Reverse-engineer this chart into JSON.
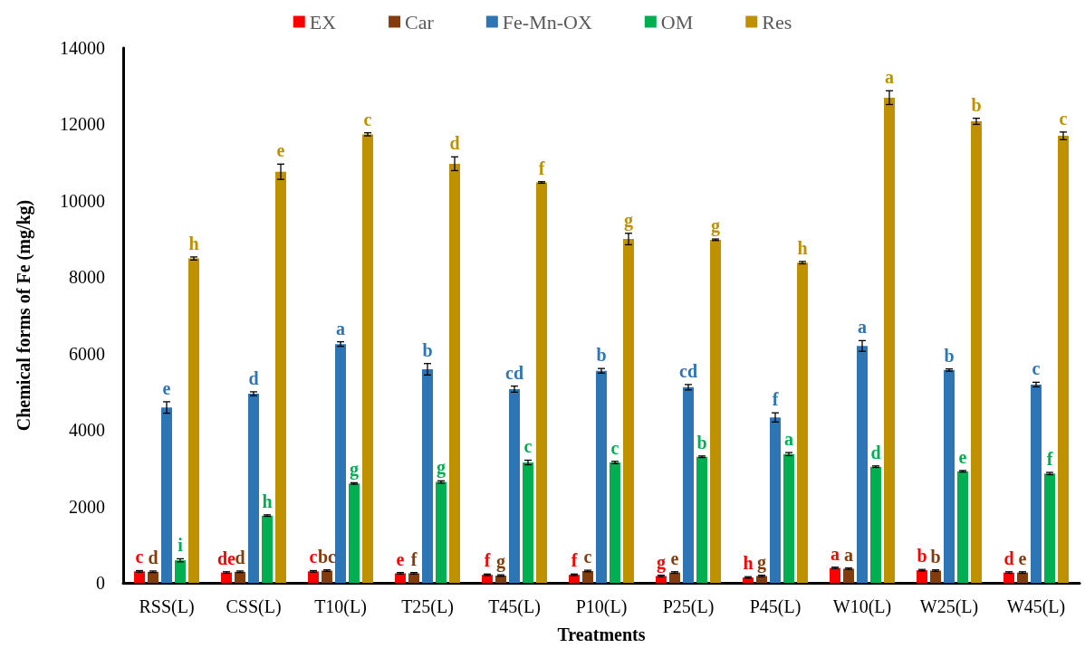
{
  "chart_data": {
    "type": "bar",
    "xlabel": "Treatments",
    "ylabel": "Chemical forms of Fe (mg/kg)",
    "categories": [
      "RSS(L)",
      "CSS(L)",
      "T10(L)",
      "T25(L)",
      "T45(L)",
      "P10(L)",
      "P25(L)",
      "P45(L)",
      "W10(L)",
      "W25(L)",
      "W45(L)"
    ],
    "series": [
      {
        "name": "EX",
        "color": "#ff0000",
        "values": [
          300,
          270,
          300,
          250,
          210,
          210,
          180,
          140,
          390,
          330,
          270
        ],
        "errors": [
          20,
          20,
          20,
          20,
          20,
          20,
          20,
          20,
          20,
          20,
          20
        ],
        "value_labels": [
          "c",
          "de",
          "c",
          "e",
          "f",
          "f",
          "g",
          "h",
          "a",
          "b",
          "d"
        ]
      },
      {
        "name": "Car",
        "color": "#843c0c",
        "values": [
          290,
          290,
          320,
          250,
          190,
          310,
          270,
          180,
          370,
          320,
          270
        ],
        "errors": [
          20,
          20,
          20,
          20,
          20,
          20,
          20,
          20,
          20,
          20,
          20
        ],
        "value_labels": [
          "d",
          "d",
          "bc",
          "f",
          "g",
          "c",
          "e",
          "g",
          "a",
          "b",
          "e"
        ]
      },
      {
        "name": "Fe-Mn-OX",
        "color": "#2e75b6",
        "values": [
          4590,
          4950,
          6250,
          5590,
          5070,
          5550,
          5120,
          4330,
          6200,
          5570,
          5190
        ],
        "errors": [
          150,
          50,
          60,
          150,
          80,
          60,
          70,
          120,
          140,
          30,
          60
        ],
        "value_labels": [
          "e",
          "d",
          "a",
          "b",
          "cd",
          "b",
          "cd",
          "f",
          "a",
          "b",
          "c"
        ]
      },
      {
        "name": "OM",
        "color": "#00b050",
        "values": [
          590,
          1760,
          2600,
          2640,
          3150,
          3150,
          3300,
          3370,
          3040,
          2920,
          2860
        ],
        "errors": [
          40,
          20,
          20,
          30,
          60,
          30,
          20,
          40,
          20,
          20,
          30
        ],
        "value_labels": [
          "i",
          "h",
          "g",
          "g",
          "c",
          "c",
          "b",
          "a",
          "d",
          "e",
          "f"
        ]
      },
      {
        "name": "Res",
        "color": "#bf9000",
        "values": [
          8490,
          10760,
          11740,
          10970,
          10480,
          9000,
          8980,
          8380,
          12700,
          12080,
          11700
        ],
        "errors": [
          40,
          200,
          40,
          180,
          20,
          150,
          20,
          30,
          180,
          80,
          100
        ],
        "value_labels": [
          "h",
          "e",
          "c",
          "d",
          "f",
          "g",
          "g",
          "h",
          "a",
          "b",
          "c"
        ]
      }
    ],
    "ylim": [
      0,
      14000
    ],
    "yticks": [
      0,
      2000,
      4000,
      6000,
      8000,
      10000,
      12000,
      14000
    ],
    "legend": "top"
  }
}
